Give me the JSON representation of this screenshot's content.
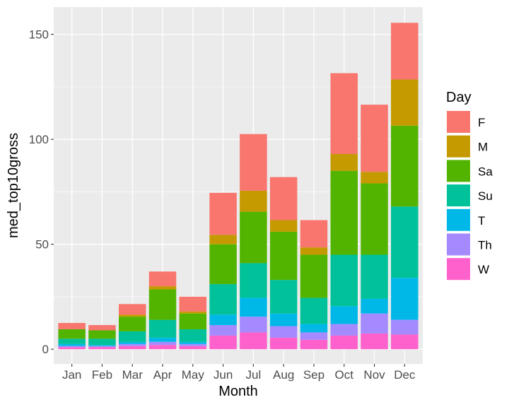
{
  "chart_data": {
    "type": "bar",
    "stacked": true,
    "xlabel": "Month",
    "ylabel": "med_top10gross",
    "ylim": [
      -7,
      163
    ],
    "yticks": [
      0,
      50,
      100,
      150
    ],
    "categories": [
      "Jan",
      "Feb",
      "Mar",
      "Apr",
      "May",
      "Jun",
      "Jul",
      "Aug",
      "Sep",
      "Oct",
      "Nov",
      "Dec"
    ],
    "legend": {
      "title": "Day",
      "position": "right"
    },
    "grid": true,
    "series": [
      {
        "name": "W",
        "color": "#FF61CC",
        "values": [
          1.0,
          1.0,
          1.5,
          2.0,
          1.5,
          6.5,
          8.0,
          5.5,
          4.5,
          6.5,
          7.5,
          7.0
        ]
      },
      {
        "name": "Th",
        "color": "#A58AFF",
        "values": [
          0.5,
          0.5,
          1.0,
          1.5,
          1.0,
          5.0,
          7.5,
          5.5,
          3.5,
          5.5,
          9.5,
          7.0
        ]
      },
      {
        "name": "T",
        "color": "#00B8E7",
        "values": [
          1.0,
          0.5,
          1.0,
          2.0,
          1.0,
          5.0,
          9.0,
          6.0,
          4.0,
          8.5,
          7.0,
          20.0
        ]
      },
      {
        "name": "Su",
        "color": "#00C19A",
        "values": [
          2.5,
          3.0,
          5.0,
          8.5,
          6.0,
          14.5,
          16.5,
          16.0,
          12.5,
          24.5,
          21.0,
          34.0
        ]
      },
      {
        "name": "Sa",
        "color": "#53B400",
        "values": [
          4.5,
          4.0,
          7.0,
          14.5,
          7.5,
          19.0,
          24.5,
          23.0,
          20.5,
          40.0,
          34.0,
          38.5
        ]
      },
      {
        "name": "M",
        "color": "#C49A00",
        "values": [
          0.0,
          0.0,
          1.0,
          1.5,
          1.0,
          4.5,
          10.0,
          5.5,
          3.5,
          8.0,
          5.5,
          22.0
        ]
      },
      {
        "name": "F",
        "color": "#F8766D",
        "values": [
          3.0,
          2.5,
          5.0,
          7.0,
          7.0,
          20.0,
          27.0,
          20.5,
          13.0,
          38.5,
          32.0,
          27.0
        ]
      }
    ],
    "legend_order": [
      "F",
      "M",
      "Sa",
      "Su",
      "T",
      "Th",
      "W"
    ]
  }
}
